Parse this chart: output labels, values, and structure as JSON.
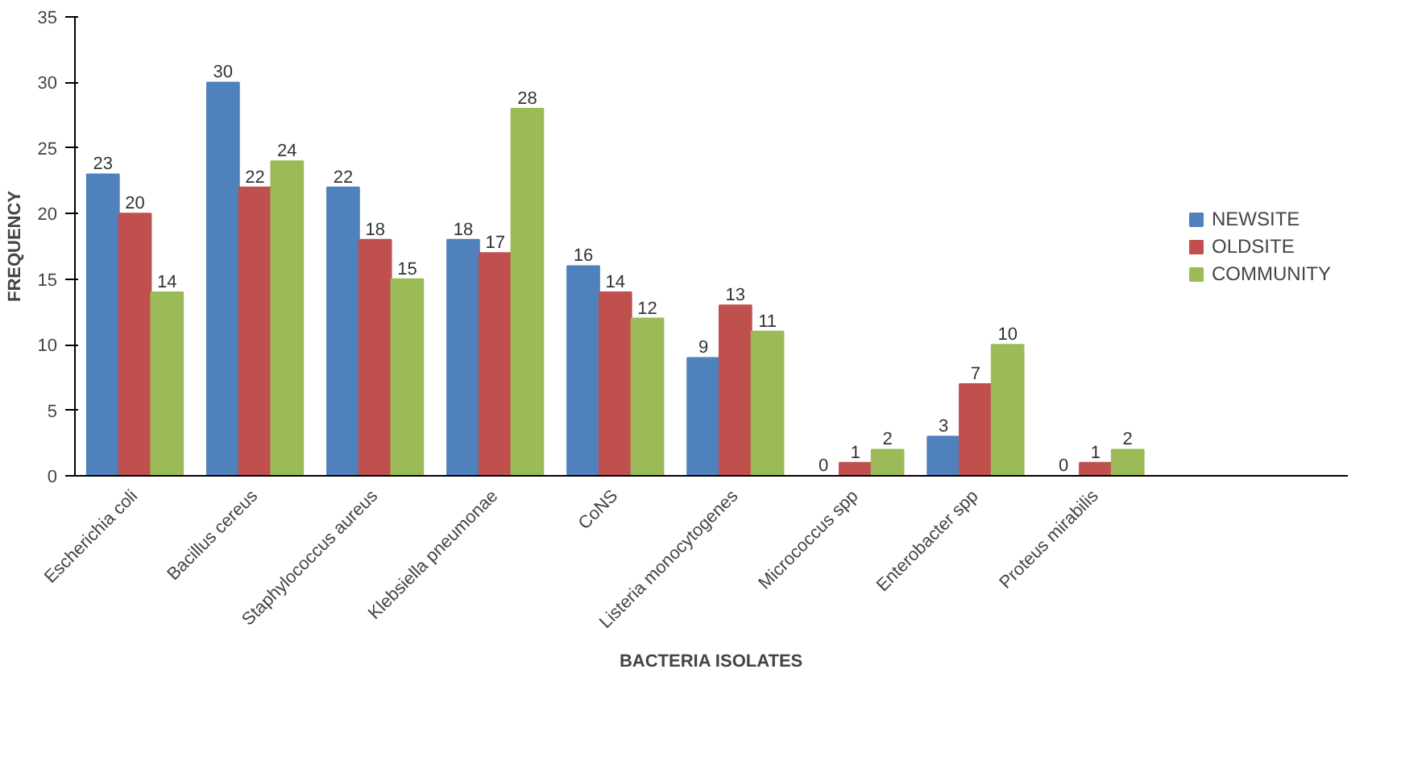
{
  "chart_data": {
    "type": "bar",
    "xlabel": "BACTERIA ISOLATES",
    "ylabel": "FREQUENCY",
    "categories": [
      "Escherichia coli",
      "Bacillus cereus",
      "Staphylococcus aureus",
      "Klebsiella pneumonae",
      "CoNS",
      "Listeria monocytogenes",
      "Micrococcus spp",
      "Enterobacter spp",
      "Proteus mirabilis"
    ],
    "series": [
      {
        "name": "NEWSITE",
        "color": "#4f81bd",
        "values": [
          23,
          30,
          22,
          18,
          16,
          9,
          0,
          3,
          0
        ]
      },
      {
        "name": "OLDSITE",
        "color": "#c0504d",
        "values": [
          20,
          22,
          18,
          17,
          14,
          13,
          1,
          7,
          1
        ]
      },
      {
        "name": "COMMUNITY",
        "color": "#9bbb59",
        "values": [
          14,
          24,
          15,
          28,
          12,
          11,
          2,
          10,
          2
        ]
      }
    ],
    "ylim": [
      0,
      35
    ],
    "yticks": [
      0,
      5,
      10,
      15,
      20,
      25,
      30,
      35
    ],
    "grid": false,
    "legend": "right",
    "data_labels": true
  }
}
